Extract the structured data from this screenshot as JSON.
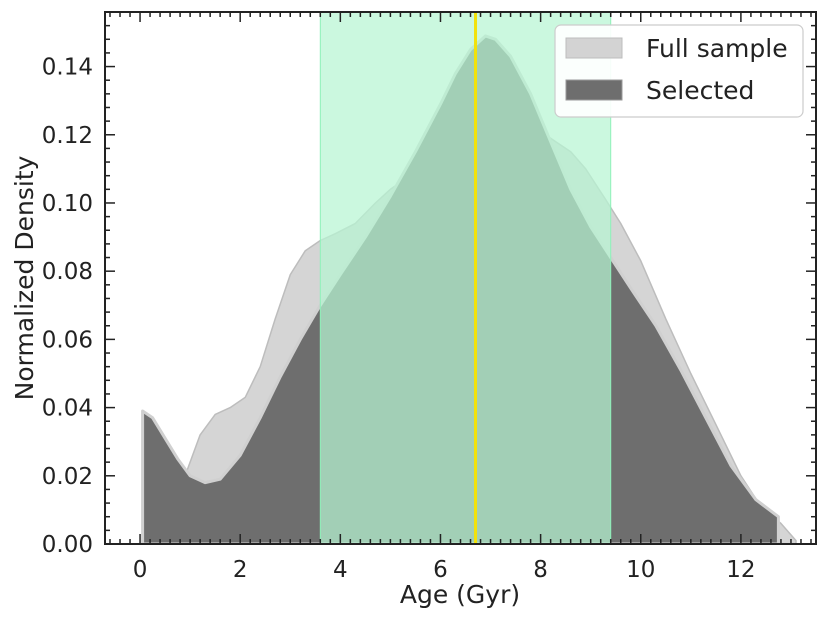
{
  "chart_data": {
    "type": "area",
    "title": "",
    "xlabel": "Age (Gyr)",
    "ylabel": "Normalized Density",
    "xlim": [
      -0.7,
      13.5
    ],
    "ylim": [
      0,
      0.156
    ],
    "xticks": [
      "0",
      "2",
      "4",
      "6",
      "8",
      "10",
      "12"
    ],
    "yticks": [
      "0.00",
      "0.02",
      "0.04",
      "0.06",
      "0.08",
      "0.10",
      "0.12",
      "0.14"
    ],
    "legend_position": "upper right",
    "grid": false,
    "series": [
      {
        "name": "Full sample",
        "color": "#d3d3d3",
        "points": [
          [
            0.05,
            0.0
          ],
          [
            0.08,
            0.03
          ],
          [
            0.3,
            0.022
          ],
          [
            0.55,
            0.012
          ],
          [
            0.75,
            0.014
          ],
          [
            0.95,
            0.022
          ],
          [
            1.2,
            0.032
          ],
          [
            1.5,
            0.038
          ],
          [
            1.8,
            0.04
          ],
          [
            2.1,
            0.043
          ],
          [
            2.4,
            0.052
          ],
          [
            2.7,
            0.066
          ],
          [
            3.0,
            0.079
          ],
          [
            3.3,
            0.086
          ],
          [
            3.6,
            0.089
          ],
          [
            3.9,
            0.091
          ],
          [
            4.3,
            0.094
          ],
          [
            4.7,
            0.1
          ],
          [
            5.0,
            0.104
          ],
          [
            5.5,
            0.109
          ],
          [
            6.0,
            0.114
          ],
          [
            6.5,
            0.116
          ],
          [
            7.0,
            0.118
          ],
          [
            7.5,
            0.12
          ],
          [
            8.0,
            0.121
          ],
          [
            8.3,
            0.118
          ],
          [
            8.6,
            0.115
          ],
          [
            8.9,
            0.11
          ],
          [
            9.3,
            0.101
          ],
          [
            9.6,
            0.094
          ],
          [
            10.0,
            0.083
          ],
          [
            10.5,
            0.066
          ],
          [
            11.0,
            0.05
          ],
          [
            11.5,
            0.035
          ],
          [
            12.0,
            0.02
          ],
          [
            12.4,
            0.011
          ],
          [
            12.8,
            0.006
          ],
          [
            13.1,
            0.001
          ],
          [
            13.1,
            0.0
          ]
        ]
      },
      {
        "name": "Selected",
        "color": "#6e6e6e",
        "points": [
          [
            0.05,
            0.0
          ],
          [
            0.05,
            0.039
          ],
          [
            0.25,
            0.037
          ],
          [
            0.5,
            0.031
          ],
          [
            0.75,
            0.025
          ],
          [
            1.0,
            0.02
          ],
          [
            1.3,
            0.018
          ],
          [
            1.6,
            0.019
          ],
          [
            2.0,
            0.026
          ],
          [
            2.4,
            0.037
          ],
          [
            2.8,
            0.049
          ],
          [
            3.2,
            0.06
          ],
          [
            3.6,
            0.07
          ],
          [
            4.0,
            0.079
          ],
          [
            4.5,
            0.09
          ],
          [
            5.0,
            0.102
          ],
          [
            5.5,
            0.115
          ],
          [
            6.0,
            0.129
          ],
          [
            6.3,
            0.138
          ],
          [
            6.6,
            0.145
          ],
          [
            6.9,
            0.149
          ],
          [
            7.1,
            0.148
          ],
          [
            7.4,
            0.143
          ],
          [
            7.8,
            0.132
          ],
          [
            8.2,
            0.118
          ],
          [
            8.6,
            0.104
          ],
          [
            9.0,
            0.093
          ],
          [
            9.4,
            0.084
          ],
          [
            9.8,
            0.075
          ],
          [
            10.3,
            0.064
          ],
          [
            10.8,
            0.051
          ],
          [
            11.3,
            0.037
          ],
          [
            11.8,
            0.023
          ],
          [
            12.3,
            0.013
          ],
          [
            12.75,
            0.008
          ],
          [
            12.75,
            0.0
          ]
        ]
      }
    ],
    "shaded_span": {
      "x0": 3.6,
      "x1": 9.4,
      "color": "#b7f5d2"
    },
    "vertical_line": {
      "x": 6.7,
      "color": "#f2e20a"
    }
  }
}
